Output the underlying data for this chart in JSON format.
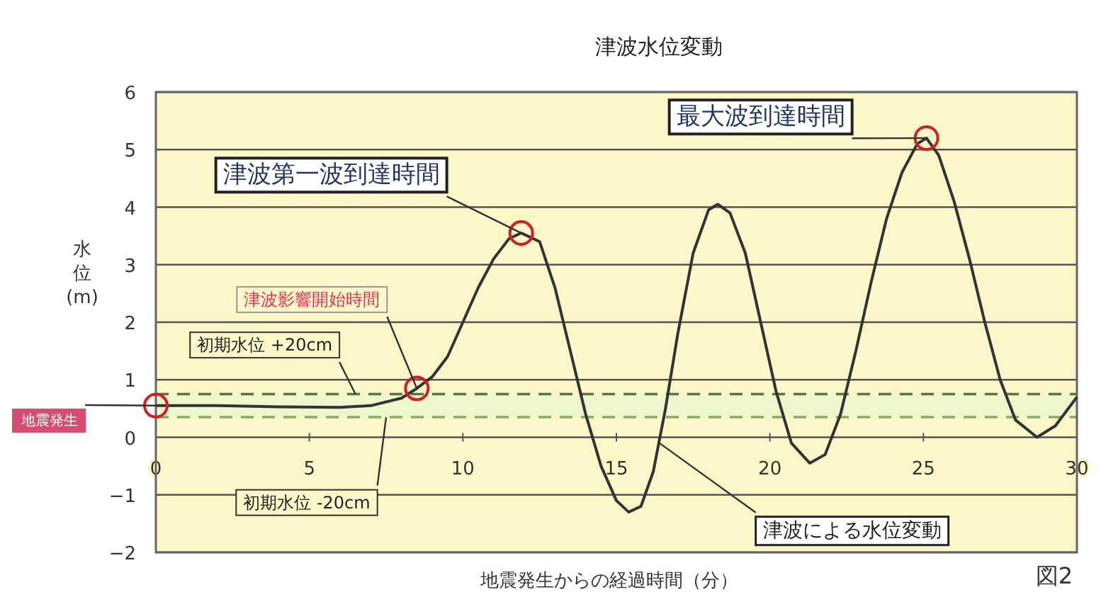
{
  "chart_data": {
    "type": "line",
    "title": "津波水位変動",
    "xlabel": "地震発生からの経過時間（分）",
    "ylabel": "水位(m)",
    "xlim": [
      0,
      30
    ],
    "ylim": [
      -2,
      6
    ],
    "xticks": [
      0,
      5,
      10,
      15,
      20,
      25,
      30
    ],
    "yticks": [
      -2,
      -1,
      0,
      1,
      2,
      3,
      4,
      5,
      6
    ],
    "grid": "y",
    "series": [
      {
        "type": "line",
        "color": "#333333",
        "marker": "none",
        "line_style": "solid",
        "x": [
          0,
          2,
          4,
          6,
          7,
          8,
          8.5,
          9,
          9.5,
          10,
          10.5,
          11,
          11.5,
          11.9,
          12.5,
          13,
          13.5,
          14,
          14.5,
          15,
          15.4,
          15.8,
          16.2,
          16.6,
          17,
          17.5,
          18,
          18.3,
          18.7,
          19.2,
          19.7,
          20.2,
          20.7,
          21.3,
          21.8,
          22.3,
          22.8,
          23.3,
          23.8,
          24.3,
          24.8,
          25.1,
          25.5,
          26,
          26.5,
          27,
          27.5,
          28,
          28.7,
          29.3,
          30
        ],
        "values": [
          0.55,
          0.55,
          0.53,
          0.52,
          0.55,
          0.68,
          0.85,
          1.05,
          1.4,
          2.0,
          2.6,
          3.1,
          3.45,
          3.55,
          3.4,
          2.6,
          1.5,
          0.4,
          -0.5,
          -1.1,
          -1.3,
          -1.2,
          -0.6,
          0.5,
          1.8,
          3.2,
          3.95,
          4.05,
          3.9,
          3.2,
          2.0,
          0.8,
          -0.1,
          -0.45,
          -0.3,
          0.4,
          1.5,
          2.7,
          3.8,
          4.6,
          5.1,
          5.2,
          4.9,
          4.1,
          3.1,
          2.0,
          1.0,
          0.3,
          0.0,
          0.2,
          0.7
        ]
      },
      {
        "type": "scatter",
        "color": "#cc2222",
        "marker": "circle",
        "x": [
          0,
          8.5,
          11.9,
          25.1
        ],
        "values": [
          0.55,
          0.85,
          3.55,
          5.2
        ]
      }
    ],
    "ref_lines": [
      {
        "axis": "y",
        "value": 0.75,
        "label": "初期水位 +20cm",
        "color": "#557744",
        "line_style": "dashed"
      },
      {
        "axis": "y",
        "value": 0.35,
        "label": "初期水位 -20cm",
        "color": "#88aa66",
        "line_style": "dashed"
      }
    ],
    "bands": [
      {
        "axis": "y",
        "from": 0.35,
        "to": 0.75,
        "color": "#eef6cc"
      }
    ],
    "annotations": [
      {
        "text": "津波第一波到達時間",
        "x": 11.9,
        "y": 3.55
      },
      {
        "text": "最大波到達時間",
        "x": 25.1,
        "y": 5.2
      },
      {
        "text": "津波影響開始時間",
        "x": 8.5,
        "y": 0.85
      },
      {
        "text": "地震発生",
        "x": 0,
        "y": 0.55
      },
      {
        "text": "津波による水位変動",
        "x": 16.4,
        "y": -0.1
      },
      "図2"
    ]
  }
}
